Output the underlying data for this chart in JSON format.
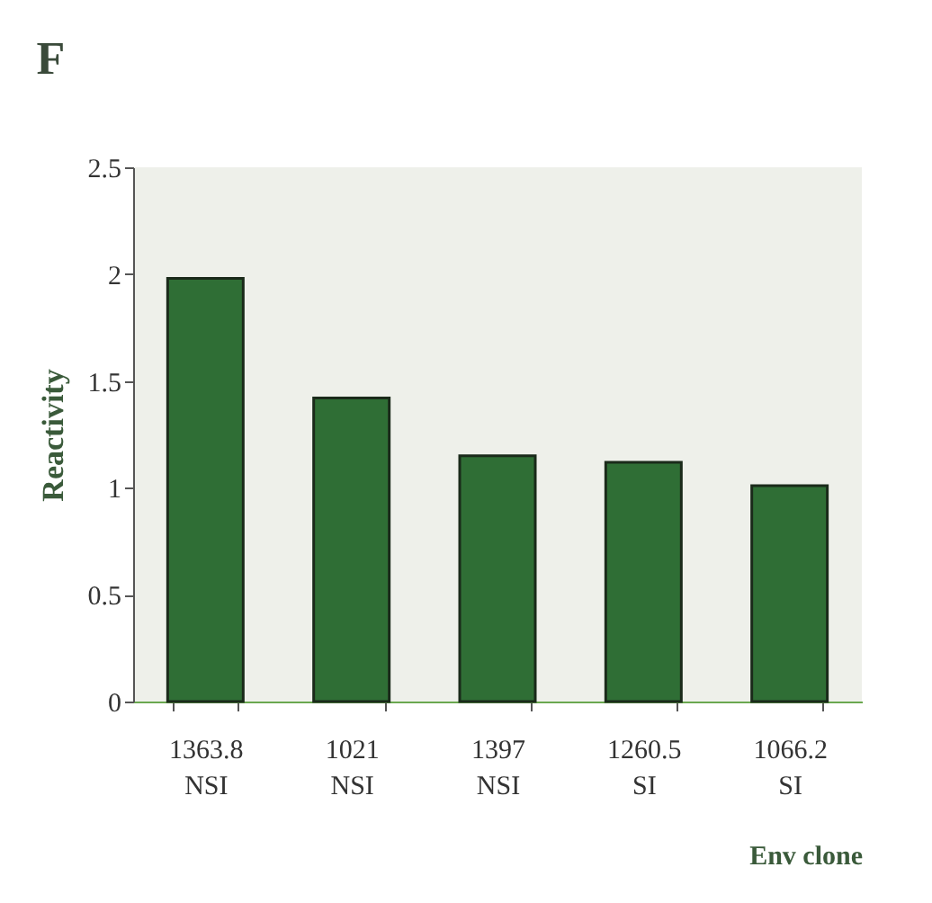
{
  "chart_data": {
    "type": "bar",
    "title": "F",
    "xlabel": "Env clone",
    "ylabel": "Reactivity",
    "categories": [
      "1363.8\nNSI",
      "1021\nNSI",
      "1397\nNSI",
      "1260.5\nSI",
      "1066.2\nSI"
    ],
    "values": [
      1.98,
      1.42,
      1.15,
      1.12,
      1.01
    ],
    "color": "#2f6e35",
    "ylim": [
      0,
      2.5
    ],
    "yticks": [
      0,
      0.5,
      1,
      1.5,
      2,
      2.5
    ],
    "grid": false
  }
}
